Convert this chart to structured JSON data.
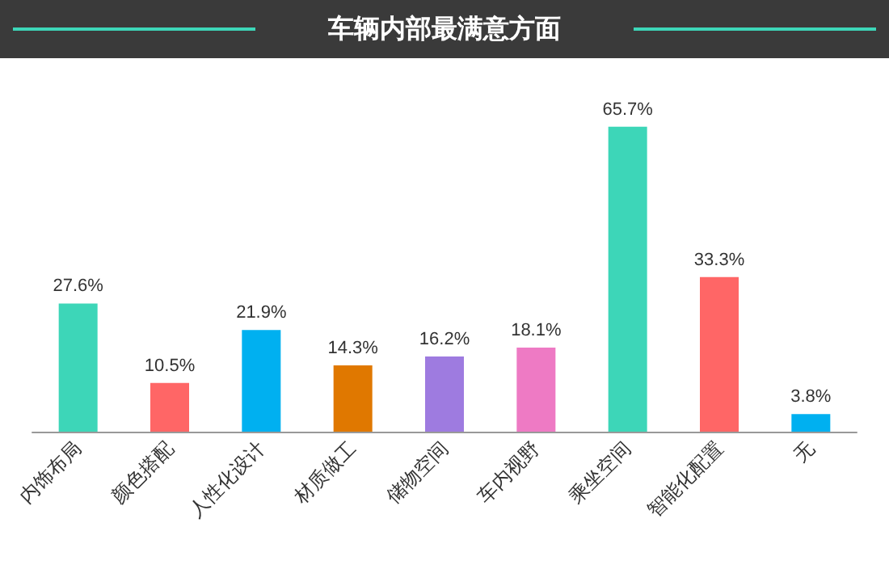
{
  "chart_data": {
    "type": "bar",
    "title": "车辆内部最满意方面",
    "categories": [
      "内饰布局",
      "颜色搭配",
      "人性化设计",
      "材质做工",
      "储物空间",
      "车内视野",
      "乘坐空间",
      "智能化配置",
      "无"
    ],
    "values": [
      27.6,
      10.5,
      21.9,
      14.3,
      16.2,
      18.1,
      65.7,
      33.3,
      3.8
    ],
    "colors": [
      "#3dd6b8",
      "#ff6666",
      "#00b0f0",
      "#e07800",
      "#9e7be0",
      "#ee7ac4",
      "#3dd6b8",
      "#ff6666",
      "#00b0f0"
    ],
    "value_labels": [
      "27.6%",
      "10.5%",
      "21.9%",
      "14.3%",
      "16.2%",
      "18.1%",
      "65.7%",
      "33.3%",
      "3.8%"
    ]
  }
}
